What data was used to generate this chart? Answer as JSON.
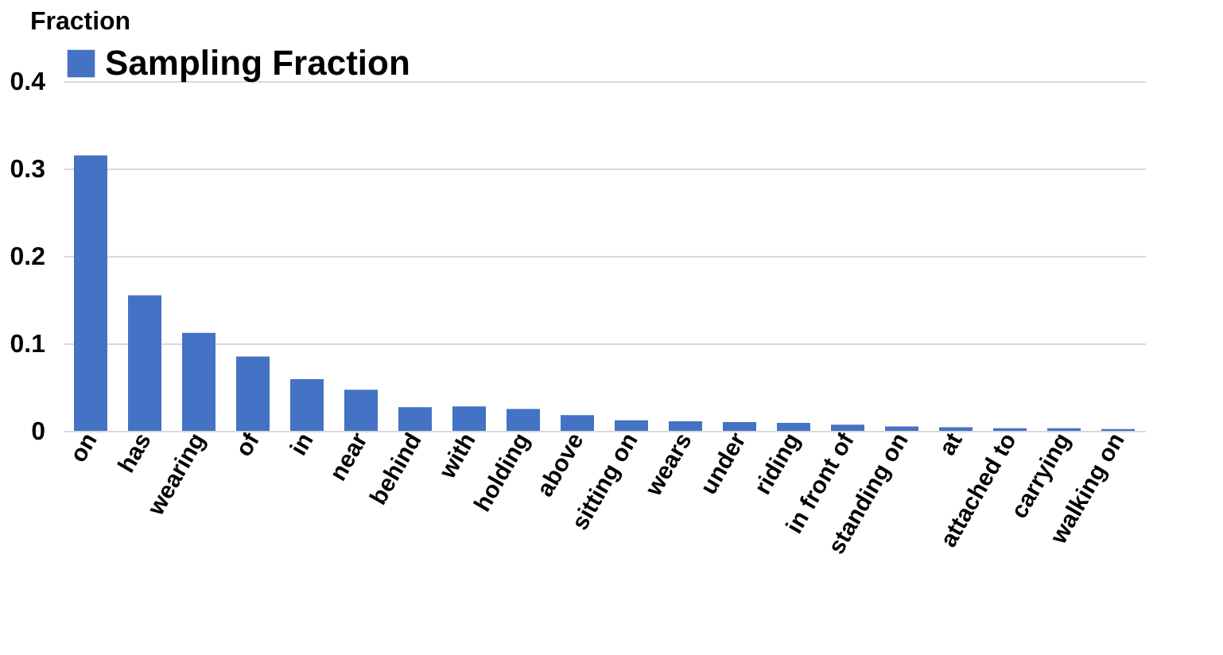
{
  "chart_data": {
    "type": "bar",
    "ylabel": "Fraction",
    "categories": [
      "on",
      "has",
      "wearing",
      "of",
      "in",
      "near",
      "behind",
      "with",
      "holding",
      "above",
      "sitting on",
      "wears",
      "under",
      "riding",
      "in front of",
      "standing on",
      "at",
      "attached to",
      "carrying",
      "walking on"
    ],
    "series": [
      {
        "name": "Sampling Fraction",
        "color": "#4472c4",
        "values": [
          0.315,
          0.155,
          0.112,
          0.085,
          0.059,
          0.047,
          0.027,
          0.028,
          0.025,
          0.018,
          0.012,
          0.011,
          0.01,
          0.009,
          0.007,
          0.005,
          0.004,
          0.003,
          0.003,
          0.002
        ]
      }
    ],
    "ylim": [
      0,
      0.4
    ],
    "yticks": [
      0,
      0.1,
      0.2,
      0.3,
      0.4
    ],
    "grid": "y",
    "legend": "top"
  }
}
